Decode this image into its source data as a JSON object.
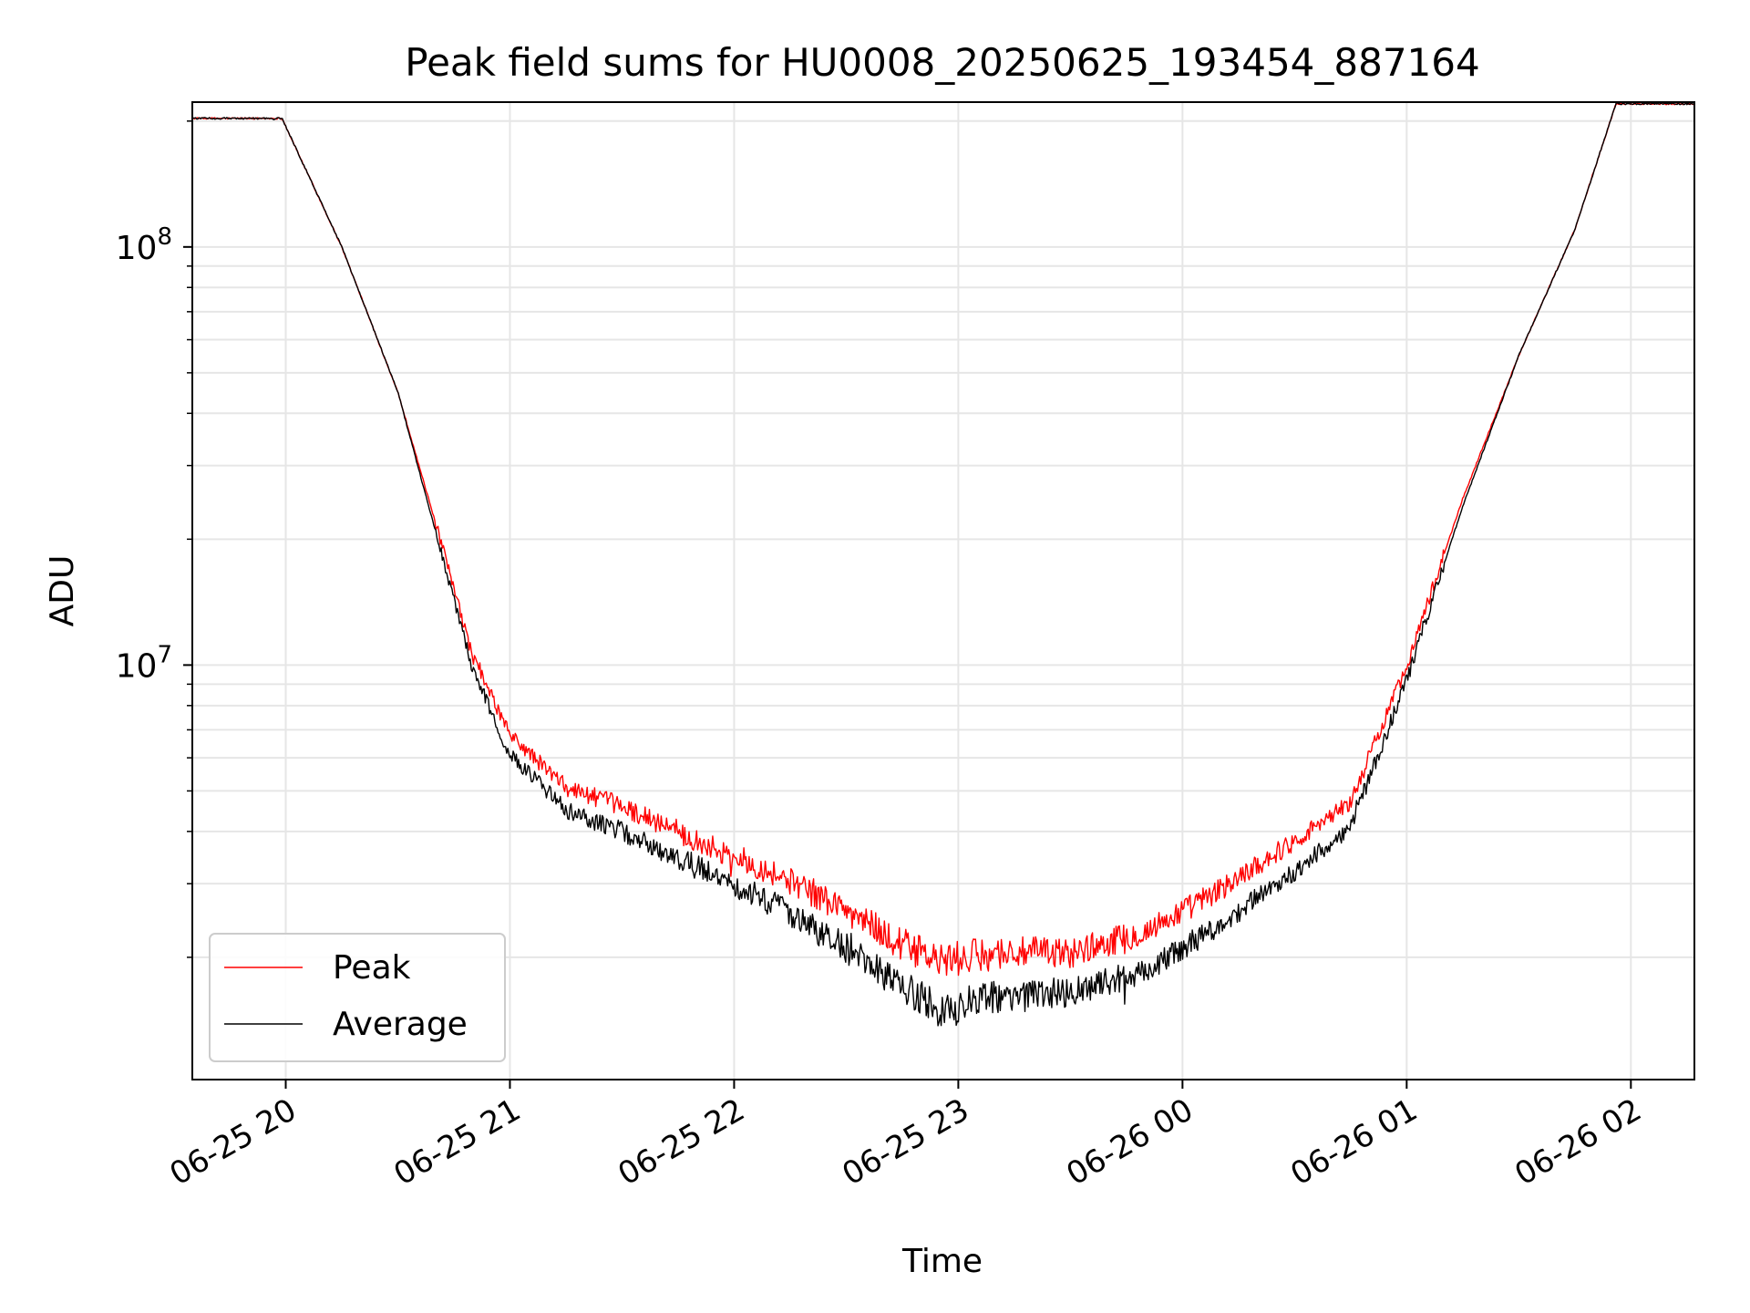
{
  "chart_data": {
    "type": "line",
    "title": "Peak field sums for HU0008_20250625_193454_887164",
    "xlabel": "Time",
    "ylabel": "ADU",
    "yscale": "log",
    "xlim": [
      "2025-06-25T19:35",
      "2025-06-26T02:17"
    ],
    "ylim": [
      1020000,
      222000000
    ],
    "grid": true,
    "legend_position": "lower-left",
    "x_tick_labels": [
      {
        "t": "2025-06-25T20:00",
        "label": "06-25 20"
      },
      {
        "t": "2025-06-25T21:00",
        "label": "06-25 21"
      },
      {
        "t": "2025-06-25T22:00",
        "label": "06-25 22"
      },
      {
        "t": "2025-06-25T23:00",
        "label": "06-25 23"
      },
      {
        "t": "2025-06-26T00:00",
        "label": "06-26 00"
      },
      {
        "t": "2025-06-26T01:00",
        "label": "06-26 01"
      },
      {
        "t": "2025-06-26T02:00",
        "label": "06-26 02"
      }
    ],
    "y_tick_labels": [
      {
        "value": 10000000,
        "label": "10^7"
      },
      {
        "value": 100000000,
        "label": "10^8"
      }
    ],
    "series": [
      {
        "name": "Peak",
        "color": "#ff0000",
        "points": [
          [
            "2025-06-25T19:35",
            203000000
          ],
          [
            "2025-06-25T19:59",
            203000000
          ],
          [
            "2025-06-25T20:15",
            100000000
          ],
          [
            "2025-06-25T20:30",
            45000000
          ],
          [
            "2025-06-25T20:40",
            22000000
          ],
          [
            "2025-06-25T20:50",
            10500000
          ],
          [
            "2025-06-25T21:00",
            6800000
          ],
          [
            "2025-06-25T21:15",
            5100000
          ],
          [
            "2025-06-25T21:30",
            4600000
          ],
          [
            "2025-06-25T21:50",
            3800000
          ],
          [
            "2025-06-25T22:10",
            3200000
          ],
          [
            "2025-06-25T22:30",
            2600000
          ],
          [
            "2025-06-25T22:45",
            2150000
          ],
          [
            "2025-06-25T22:55",
            1950000
          ],
          [
            "2025-06-25T23:10",
            2050000
          ],
          [
            "2025-06-25T23:30",
            2050000
          ],
          [
            "2025-06-25T23:50",
            2300000
          ],
          [
            "2025-06-26T00:10",
            2900000
          ],
          [
            "2025-06-26T00:30",
            3800000
          ],
          [
            "2025-06-26T00:45",
            4700000
          ],
          [
            "2025-06-26T01:00",
            10000000
          ],
          [
            "2025-06-26T01:15",
            25000000
          ],
          [
            "2025-06-26T01:30",
            55000000
          ],
          [
            "2025-06-26T01:45",
            110000000
          ],
          [
            "2025-06-26T01:56",
            220000000
          ],
          [
            "2025-06-26T02:17",
            220000000
          ]
        ]
      },
      {
        "name": "Average",
        "color": "#000000",
        "points": [
          [
            "2025-06-25T19:35",
            203000000
          ],
          [
            "2025-06-25T19:59",
            203000000
          ],
          [
            "2025-06-25T20:15",
            100000000
          ],
          [
            "2025-06-25T20:30",
            45000000
          ],
          [
            "2025-06-25T20:40",
            21000000
          ],
          [
            "2025-06-25T20:50",
            9800000
          ],
          [
            "2025-06-25T21:00",
            6100000
          ],
          [
            "2025-06-25T21:15",
            4500000
          ],
          [
            "2025-06-25T21:30",
            4000000
          ],
          [
            "2025-06-25T21:50",
            3300000
          ],
          [
            "2025-06-25T22:10",
            2700000
          ],
          [
            "2025-06-25T22:30",
            2100000
          ],
          [
            "2025-06-25T22:45",
            1700000
          ],
          [
            "2025-06-25T22:55",
            1500000
          ],
          [
            "2025-06-25T23:10",
            1600000
          ],
          [
            "2025-06-25T23:30",
            1650000
          ],
          [
            "2025-06-25T23:50",
            1850000
          ],
          [
            "2025-06-26T00:10",
            2400000
          ],
          [
            "2025-06-26T00:30",
            3200000
          ],
          [
            "2025-06-26T00:45",
            4100000
          ],
          [
            "2025-06-26T01:00",
            9200000
          ],
          [
            "2025-06-26T01:15",
            24000000
          ],
          [
            "2025-06-26T01:30",
            55000000
          ],
          [
            "2025-06-26T01:45",
            110000000
          ],
          [
            "2025-06-26T01:56",
            220000000
          ],
          [
            "2025-06-26T02:17",
            220000000
          ]
        ]
      }
    ]
  }
}
